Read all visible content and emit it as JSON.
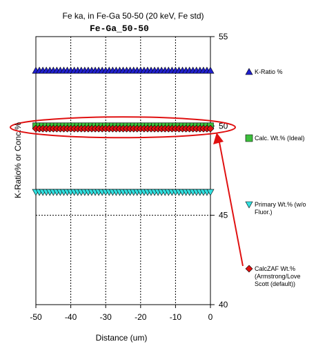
{
  "chart_data": {
    "type": "scatter",
    "title": "Fe ka, in Fe-Ga 50-50 (20 keV, Fe std)",
    "subtitle": "Fe-Ga_50-50",
    "xlabel": "Distance (um)",
    "ylabel": "K-Ratio% or Conc.%",
    "xlim": [
      -50,
      0
    ],
    "ylim": [
      40,
      55
    ],
    "x_ticks": [
      "-50",
      "-40",
      "-30",
      "-20",
      "-10",
      "0"
    ],
    "y_ticks": [
      "40",
      "45",
      "50",
      "55"
    ],
    "y_axis_side": "right",
    "grid": true,
    "legend_position": "right",
    "x_start": -50,
    "x_end": 0,
    "points_per_series": 51,
    "series": [
      {
        "name": "K-Ratio %",
        "value": 53.1,
        "marker": "triangle-up",
        "color": "#1f1fcc"
      },
      {
        "name": "Calc. Wt.% (Ideal)",
        "value": 50.0,
        "marker": "square",
        "color": "#3cbf3c"
      },
      {
        "name": "Primary Wt.% (w/o Fluor.)",
        "value": 46.3,
        "marker": "triangle-down",
        "color": "#33e0e0"
      },
      {
        "name": "CalcZAF Wt.% (Armstrong/Love Scott (default))",
        "value": 49.85,
        "marker": "diamond",
        "color": "#e01010"
      }
    ],
    "annotations": {
      "ellipse_color": "#e01010",
      "arrow_color": "#e01010"
    }
  }
}
